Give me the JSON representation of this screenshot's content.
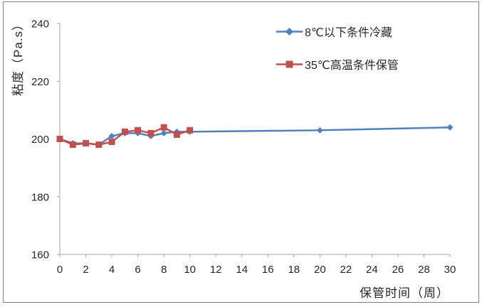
{
  "figure": {
    "background": "#FFFFFF",
    "border_color": "#7F7F7F"
  },
  "axes": {
    "line_color": "#A6A6A6",
    "tick_color": "#A6A6A6",
    "tick_label_color": "#262626",
    "title_color": "#262626",
    "tick_font_size": 15
  },
  "chart_data": {
    "type": "line",
    "title": "",
    "xlabel": "保管时间（周）",
    "ylabel": "粘度（Pa.s）",
    "xlim": [
      0,
      30
    ],
    "ylim": [
      160,
      240
    ],
    "x_ticks": [
      0,
      2,
      4,
      6,
      8,
      10,
      12,
      14,
      16,
      18,
      20,
      22,
      24,
      26,
      28,
      30
    ],
    "y_ticks": [
      160,
      180,
      200,
      220,
      240
    ],
    "grid": false,
    "legend": {
      "position": "upper-right-of-center",
      "border": false
    },
    "series": [
      {
        "name": "8℃以下条件冷藏",
        "color": "#4F81BD",
        "marker": "diamond",
        "line_width": 2.5,
        "x": [
          0,
          1,
          2,
          3,
          4,
          5,
          6,
          7,
          8,
          9,
          10,
          20,
          30
        ],
        "values": [
          200,
          198.5,
          198.5,
          198,
          201,
          202,
          202,
          201,
          202,
          202.5,
          202.5,
          203,
          204
        ]
      },
      {
        "name": "35℃高温条件保管",
        "color": "#C0504D",
        "marker": "square",
        "line_width": 2.5,
        "x": [
          0,
          1,
          2,
          3,
          4,
          5,
          6,
          7,
          8,
          9,
          10
        ],
        "values": [
          200,
          198,
          198.5,
          198,
          199,
          202.5,
          203,
          202,
          204,
          201.5,
          203
        ]
      }
    ]
  }
}
